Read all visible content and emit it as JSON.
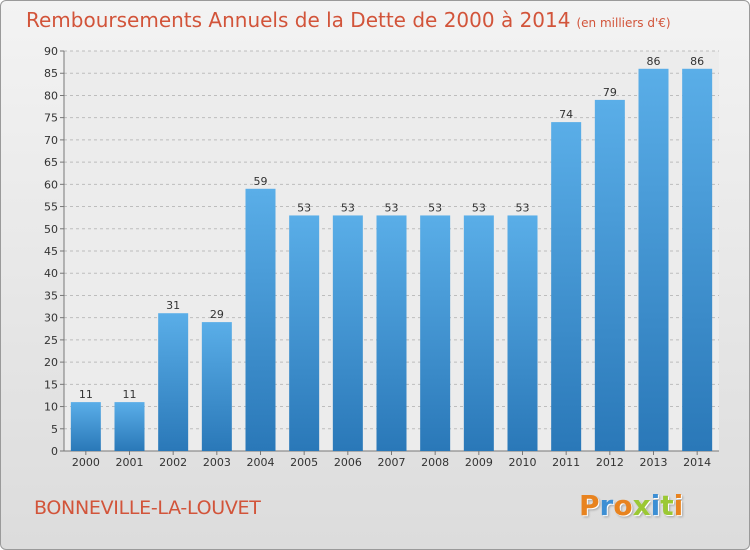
{
  "header": {
    "title": "Remboursements Annuels de la Dette de 2000 à 2014",
    "unit": "(en milliers d'€)"
  },
  "footer": {
    "city": "BONNEVILLE-LA-LOUVET",
    "logo": "Proxiti"
  },
  "colors": {
    "title": "#d2543a",
    "bar_top": "#5aaee8",
    "bar_bottom": "#2a78b8"
  },
  "chart_data": {
    "type": "bar",
    "title": "Remboursements Annuels de la Dette de 2000 à 2014",
    "xlabel": "",
    "ylabel": "(en milliers d'€)",
    "categories": [
      "2000",
      "2001",
      "2002",
      "2003",
      "2004",
      "2005",
      "2006",
      "2007",
      "2008",
      "2009",
      "2010",
      "2011",
      "2012",
      "2013",
      "2014"
    ],
    "values": [
      11,
      11,
      31,
      29,
      59,
      53,
      53,
      53,
      53,
      53,
      53,
      74,
      79,
      86,
      86
    ],
    "ylim": [
      0,
      90
    ],
    "yticks": [
      0,
      5,
      10,
      15,
      20,
      25,
      30,
      35,
      40,
      45,
      50,
      55,
      60,
      65,
      70,
      75,
      80,
      85,
      90
    ],
    "grid": true
  }
}
